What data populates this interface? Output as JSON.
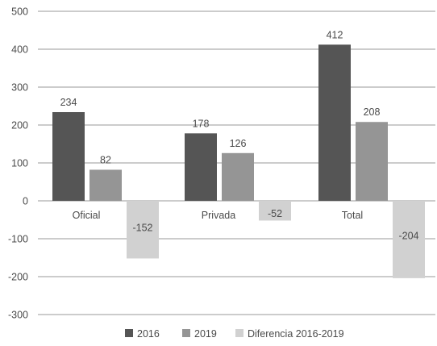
{
  "chart_data": {
    "type": "bar",
    "categories": [
      "Oficial",
      "Privada",
      "Total"
    ],
    "series": [
      {
        "name": "2016",
        "values": [
          234,
          178,
          412
        ],
        "color": "#555555"
      },
      {
        "name": "2019",
        "values": [
          82,
          126,
          208
        ],
        "color": "#959595"
      },
      {
        "name": "Diferencia 2016-2019",
        "values": [
          -152,
          -52,
          -204
        ],
        "color": "#d1d1d1"
      }
    ],
    "yticks": [
      500,
      400,
      300,
      200,
      100,
      0,
      -100,
      -200,
      -300
    ],
    "yticklabels": [
      "500",
      "400",
      "300",
      "200",
      "100",
      "0",
      "-100",
      "-200",
      "-300"
    ],
    "ylim": [
      -300,
      500
    ],
    "data_labels": [
      [
        "234",
        "178",
        "412"
      ],
      [
        "82",
        "126",
        "208"
      ],
      [
        "-152",
        "-52",
        "-204"
      ]
    ],
    "grid": true,
    "legend_position": "bottom"
  }
}
